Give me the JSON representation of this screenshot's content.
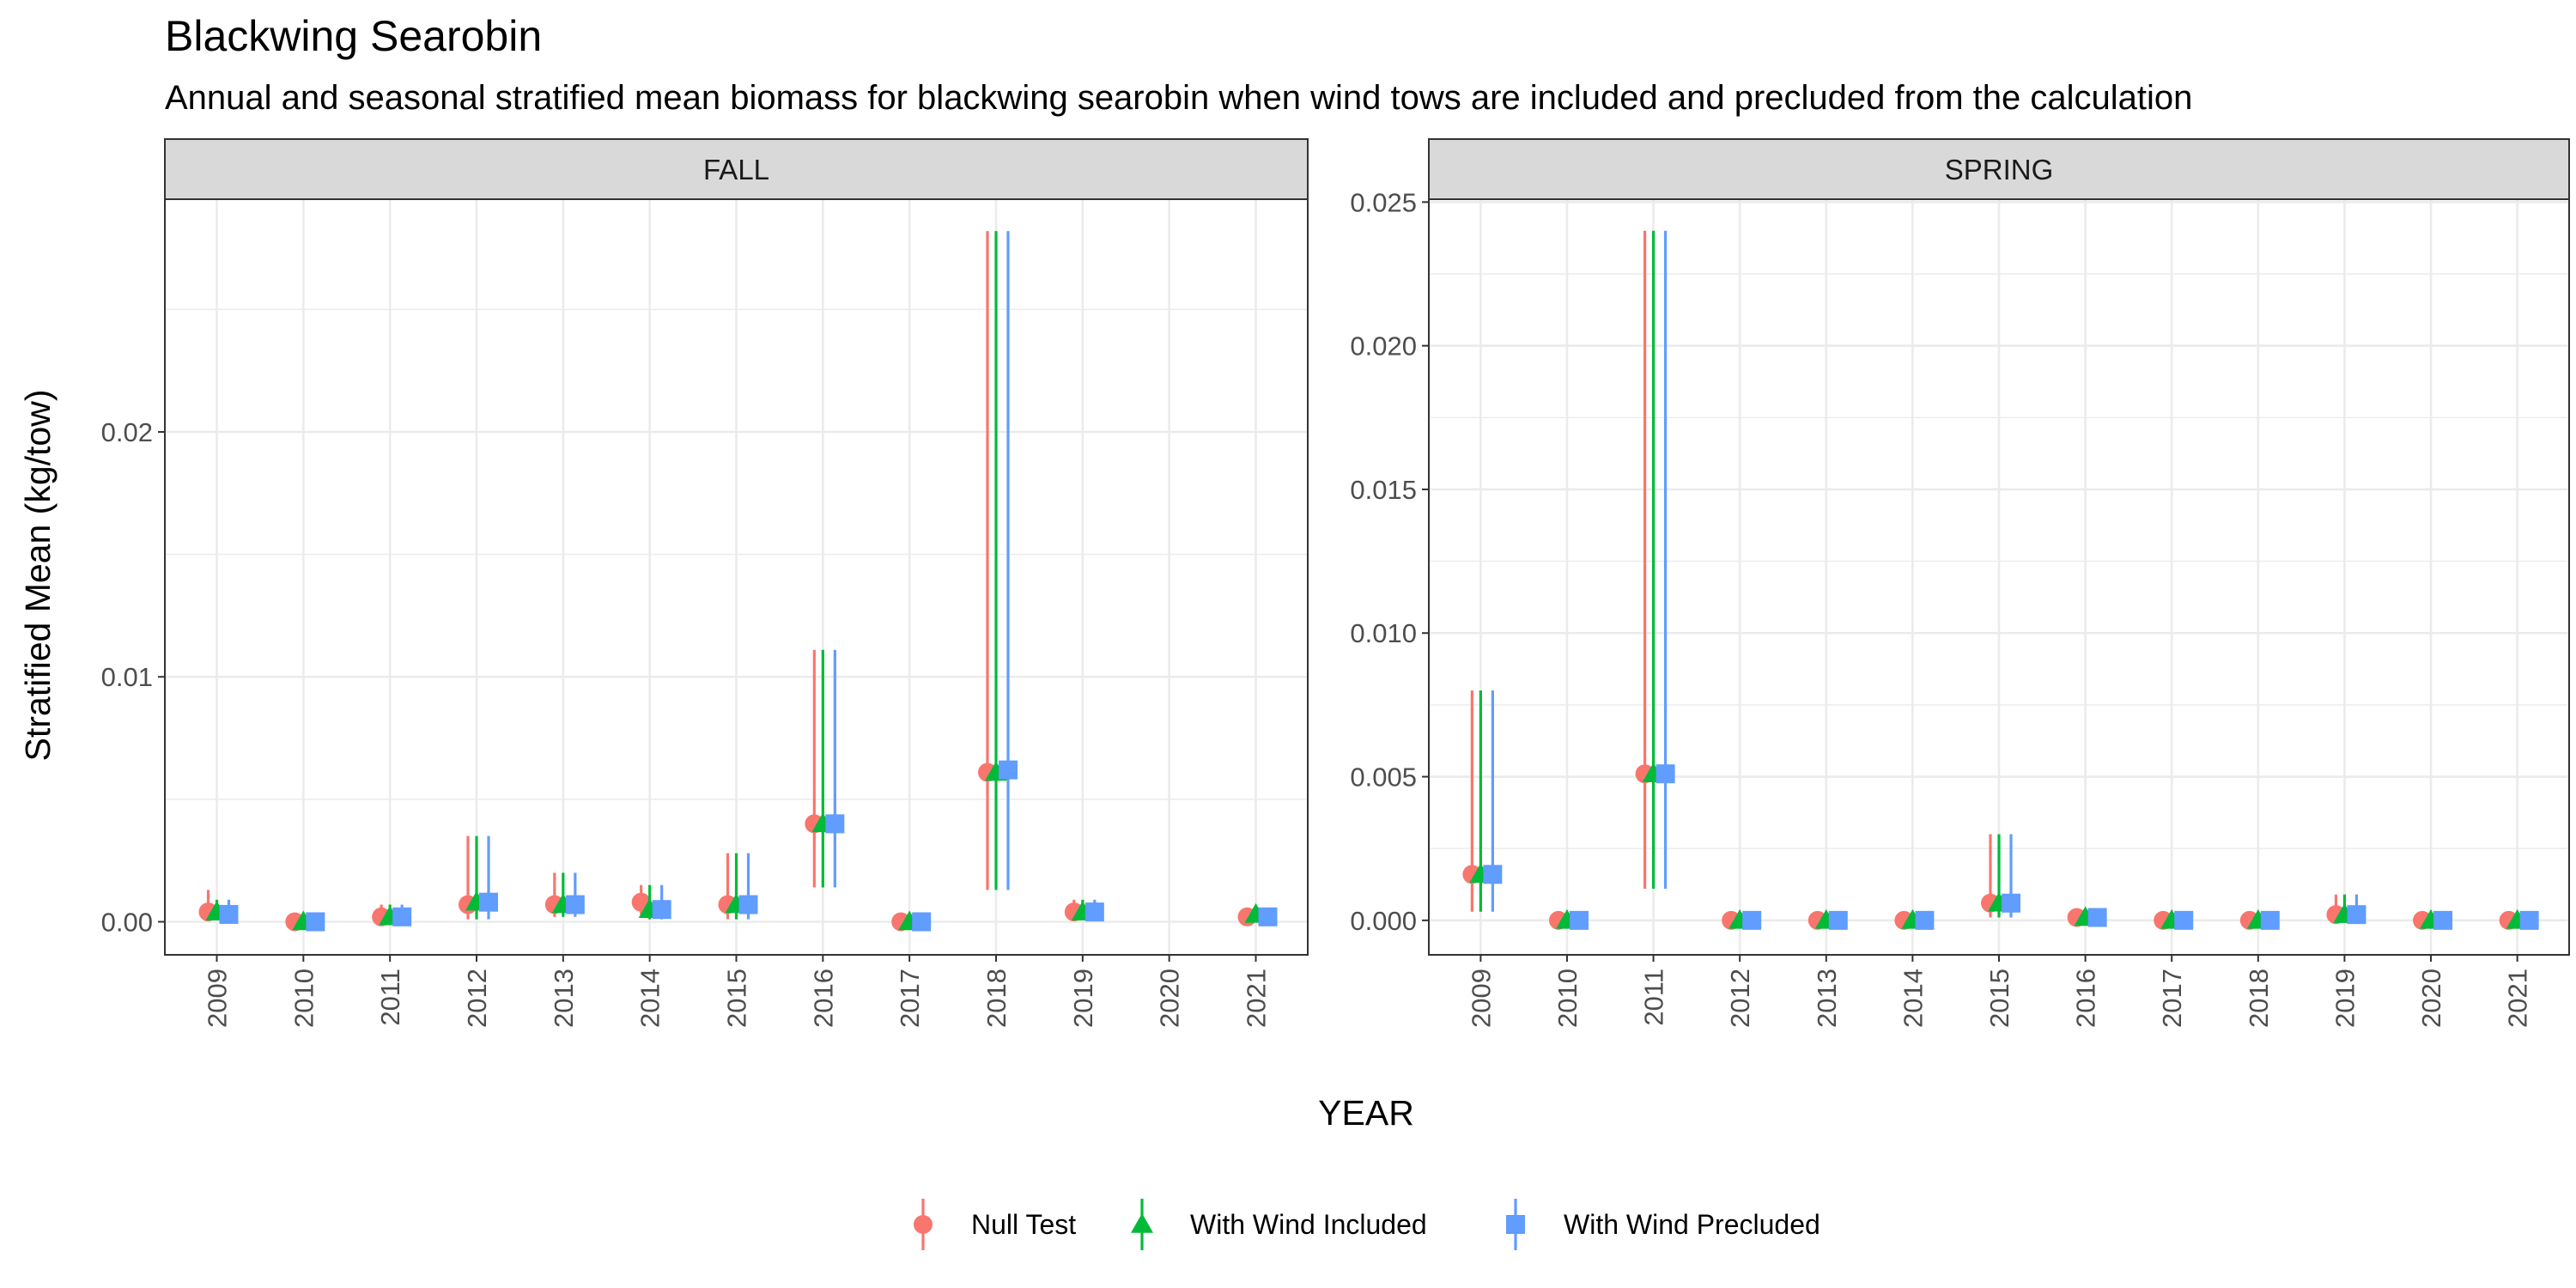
{
  "title": "Blackwing Searobin",
  "subtitle": "Annual and seasonal stratified mean biomass for blackwing searobin when wind tows are included and precluded from the calculation",
  "colors": {
    "null": "#F8766D",
    "included": "#00BA38",
    "precluded": "#619CFF",
    "strip_bg": "#D9D9D9",
    "grid": "#EBEBEB",
    "axis": "#333333"
  },
  "chart_data": [
    {
      "type": "scatter",
      "panel": "FALL",
      "xlabel": "YEAR",
      "ylabel": "Stratified Mean (kg/tow)",
      "ylim": [
        -0.00135,
        0.0295
      ],
      "yticks": [
        0.0,
        0.01,
        0.02
      ],
      "ytick_labels": [
        "0.00",
        "0.01",
        "0.02"
      ],
      "categories": [
        "2009",
        "2010",
        "2011",
        "2012",
        "2013",
        "2014",
        "2015",
        "2016",
        "2017",
        "2018",
        "2019",
        "2020",
        "2021"
      ],
      "series": [
        {
          "name": "Null Test",
          "color": "#F8766D",
          "shape": "circle",
          "points": [
            {
              "x": "2009",
              "y": 0.0004,
              "lo": 0.0001,
              "hi": 0.0013
            },
            {
              "x": "2010",
              "y": 0.0,
              "lo": 0.0,
              "hi": 0.0001
            },
            {
              "x": "2011",
              "y": 0.0002,
              "lo": 0.0,
              "hi": 0.0007
            },
            {
              "x": "2012",
              "y": 0.0007,
              "lo": 0.0001,
              "hi": 0.0035
            },
            {
              "x": "2013",
              "y": 0.0007,
              "lo": 0.0002,
              "hi": 0.002
            },
            {
              "x": "2014",
              "y": 0.0008,
              "lo": 0.0003,
              "hi": 0.0015
            },
            {
              "x": "2015",
              "y": 0.0007,
              "lo": 0.0001,
              "hi": 0.0028
            },
            {
              "x": "2016",
              "y": 0.004,
              "lo": 0.0014,
              "hi": 0.0111
            },
            {
              "x": "2017",
              "y": 0.0,
              "lo": 0.0,
              "hi": 0.0001
            },
            {
              "x": "2018",
              "y": 0.0061,
              "lo": 0.0013,
              "hi": 0.0282
            },
            {
              "x": "2019",
              "y": 0.0004,
              "lo": 0.0001,
              "hi": 0.0009
            },
            {
              "x": "2021",
              "y": 0.0002,
              "lo": 0.0,
              "hi": 0.0004
            }
          ]
        },
        {
          "name": "With Wind Included",
          "color": "#00BA38",
          "shape": "triangle",
          "points": [
            {
              "x": "2009",
              "y": 0.0004,
              "lo": 0.0001,
              "hi": 0.0009
            },
            {
              "x": "2010",
              "y": 0.0,
              "lo": 0.0,
              "hi": 0.0001
            },
            {
              "x": "2011",
              "y": 0.0002,
              "lo": 0.0,
              "hi": 0.0007
            },
            {
              "x": "2012",
              "y": 0.0008,
              "lo": 0.0001,
              "hi": 0.0035
            },
            {
              "x": "2013",
              "y": 0.0007,
              "lo": 0.0002,
              "hi": 0.002
            },
            {
              "x": "2014",
              "y": 0.0005,
              "lo": 0.0001,
              "hi": 0.0015
            },
            {
              "x": "2015",
              "y": 0.0007,
              "lo": 0.0001,
              "hi": 0.0028
            },
            {
              "x": "2016",
              "y": 0.004,
              "lo": 0.0014,
              "hi": 0.0111
            },
            {
              "x": "2017",
              "y": 0.0,
              "lo": 0.0,
              "hi": 0.0001
            },
            {
              "x": "2018",
              "y": 0.0061,
              "lo": 0.0013,
              "hi": 0.0282
            },
            {
              "x": "2019",
              "y": 0.0004,
              "lo": 0.0001,
              "hi": 0.0009
            },
            {
              "x": "2021",
              "y": 0.0003,
              "lo": 0.0,
              "hi": 0.0004
            }
          ]
        },
        {
          "name": "With Wind Precluded",
          "color": "#619CFF",
          "shape": "square",
          "points": [
            {
              "x": "2009",
              "y": 0.0003,
              "lo": 0.0001,
              "hi": 0.0009
            },
            {
              "x": "2010",
              "y": 0.0,
              "lo": 0.0,
              "hi": 0.0001
            },
            {
              "x": "2011",
              "y": 0.0002,
              "lo": 0.0,
              "hi": 0.0007
            },
            {
              "x": "2012",
              "y": 0.0008,
              "lo": 0.0001,
              "hi": 0.0035
            },
            {
              "x": "2013",
              "y": 0.0007,
              "lo": 0.0002,
              "hi": 0.002
            },
            {
              "x": "2014",
              "y": 0.0005,
              "lo": 0.0001,
              "hi": 0.0015
            },
            {
              "x": "2015",
              "y": 0.0007,
              "lo": 0.0001,
              "hi": 0.0028
            },
            {
              "x": "2016",
              "y": 0.004,
              "lo": 0.0014,
              "hi": 0.0111
            },
            {
              "x": "2017",
              "y": 0.0,
              "lo": 0.0,
              "hi": 0.0001
            },
            {
              "x": "2018",
              "y": 0.0062,
              "lo": 0.0013,
              "hi": 0.0282
            },
            {
              "x": "2019",
              "y": 0.0004,
              "lo": 0.0001,
              "hi": 0.0009
            },
            {
              "x": "2021",
              "y": 0.0002,
              "lo": 0.0,
              "hi": 0.0004
            }
          ]
        }
      ]
    },
    {
      "type": "scatter",
      "panel": "SPRING",
      "xlabel": "YEAR",
      "ylabel": "Stratified Mean (kg/tow)",
      "ylim": [
        -0.0012,
        0.0251
      ],
      "yticks": [
        0.0,
        0.005,
        0.01,
        0.015,
        0.02,
        0.025
      ],
      "ytick_labels": [
        "0.000",
        "0.005",
        "0.010",
        "0.015",
        "0.020",
        "0.025"
      ],
      "categories": [
        "2009",
        "2010",
        "2011",
        "2012",
        "2013",
        "2014",
        "2015",
        "2016",
        "2017",
        "2018",
        "2019",
        "2020",
        "2021"
      ],
      "series": [
        {
          "name": "Null Test",
          "color": "#F8766D",
          "shape": "circle",
          "points": [
            {
              "x": "2009",
              "y": 0.0016,
              "lo": 0.0003,
              "hi": 0.008
            },
            {
              "x": "2010",
              "y": 0.0,
              "lo": 0.0,
              "hi": 0.0001
            },
            {
              "x": "2011",
              "y": 0.0051,
              "lo": 0.0011,
              "hi": 0.024
            },
            {
              "x": "2012",
              "y": 0.0,
              "lo": 0.0,
              "hi": 0.0001
            },
            {
              "x": "2013",
              "y": 0.0,
              "lo": 0.0,
              "hi": 0.0001
            },
            {
              "x": "2014",
              "y": 0.0,
              "lo": 0.0,
              "hi": 0.0001
            },
            {
              "x": "2015",
              "y": 0.0006,
              "lo": 0.0001,
              "hi": 0.003
            },
            {
              "x": "2016",
              "y": 0.0001,
              "lo": 0.0,
              "hi": 0.0003
            },
            {
              "x": "2017",
              "y": 0.0,
              "lo": 0.0,
              "hi": 0.0001
            },
            {
              "x": "2018",
              "y": 0.0,
              "lo": 0.0,
              "hi": 0.0001
            },
            {
              "x": "2019",
              "y": 0.0002,
              "lo": 0.0,
              "hi": 0.0009
            },
            {
              "x": "2020",
              "y": 0.0,
              "lo": 0.0,
              "hi": 0.0001
            },
            {
              "x": "2021",
              "y": 0.0,
              "lo": 0.0,
              "hi": 0.0001
            }
          ]
        },
        {
          "name": "With Wind Included",
          "color": "#00BA38",
          "shape": "triangle",
          "points": [
            {
              "x": "2009",
              "y": 0.0016,
              "lo": 0.0003,
              "hi": 0.008
            },
            {
              "x": "2010",
              "y": 0.0,
              "lo": 0.0,
              "hi": 0.0001
            },
            {
              "x": "2011",
              "y": 0.0051,
              "lo": 0.0011,
              "hi": 0.024
            },
            {
              "x": "2012",
              "y": 0.0,
              "lo": 0.0,
              "hi": 0.0001
            },
            {
              "x": "2013",
              "y": 0.0,
              "lo": 0.0,
              "hi": 0.0001
            },
            {
              "x": "2014",
              "y": 0.0,
              "lo": 0.0,
              "hi": 0.0001
            },
            {
              "x": "2015",
              "y": 0.0006,
              "lo": 0.0001,
              "hi": 0.003
            },
            {
              "x": "2016",
              "y": 0.0001,
              "lo": 0.0,
              "hi": 0.0003
            },
            {
              "x": "2017",
              "y": 0.0,
              "lo": 0.0,
              "hi": 0.0001
            },
            {
              "x": "2018",
              "y": 0.0,
              "lo": 0.0,
              "hi": 0.0001
            },
            {
              "x": "2019",
              "y": 0.0002,
              "lo": 0.0,
              "hi": 0.0009
            },
            {
              "x": "2020",
              "y": 0.0,
              "lo": 0.0,
              "hi": 0.0001
            },
            {
              "x": "2021",
              "y": 0.0,
              "lo": 0.0,
              "hi": 0.0001
            }
          ]
        },
        {
          "name": "With Wind Precluded",
          "color": "#619CFF",
          "shape": "square",
          "points": [
            {
              "x": "2009",
              "y": 0.0016,
              "lo": 0.0003,
              "hi": 0.008
            },
            {
              "x": "2010",
              "y": 0.0,
              "lo": 0.0,
              "hi": 0.0001
            },
            {
              "x": "2011",
              "y": 0.0051,
              "lo": 0.0011,
              "hi": 0.024
            },
            {
              "x": "2012",
              "y": 0.0,
              "lo": 0.0,
              "hi": 0.0001
            },
            {
              "x": "2013",
              "y": 0.0,
              "lo": 0.0,
              "hi": 0.0001
            },
            {
              "x": "2014",
              "y": 0.0,
              "lo": 0.0,
              "hi": 0.0001
            },
            {
              "x": "2015",
              "y": 0.0006,
              "lo": 0.0001,
              "hi": 0.003
            },
            {
              "x": "2016",
              "y": 0.0001,
              "lo": 0.0,
              "hi": 0.0003
            },
            {
              "x": "2017",
              "y": 0.0,
              "lo": 0.0,
              "hi": 0.0001
            },
            {
              "x": "2018",
              "y": 0.0,
              "lo": 0.0,
              "hi": 0.0001
            },
            {
              "x": "2019",
              "y": 0.0002,
              "lo": 0.0,
              "hi": 0.0009
            },
            {
              "x": "2020",
              "y": 0.0,
              "lo": 0.0,
              "hi": 0.0001
            },
            {
              "x": "2021",
              "y": 0.0,
              "lo": 0.0,
              "hi": 0.0001
            }
          ]
        }
      ]
    }
  ],
  "legend": {
    "position": "bottom",
    "items": [
      "Null Test",
      "With Wind Included",
      "With Wind Precluded"
    ]
  }
}
